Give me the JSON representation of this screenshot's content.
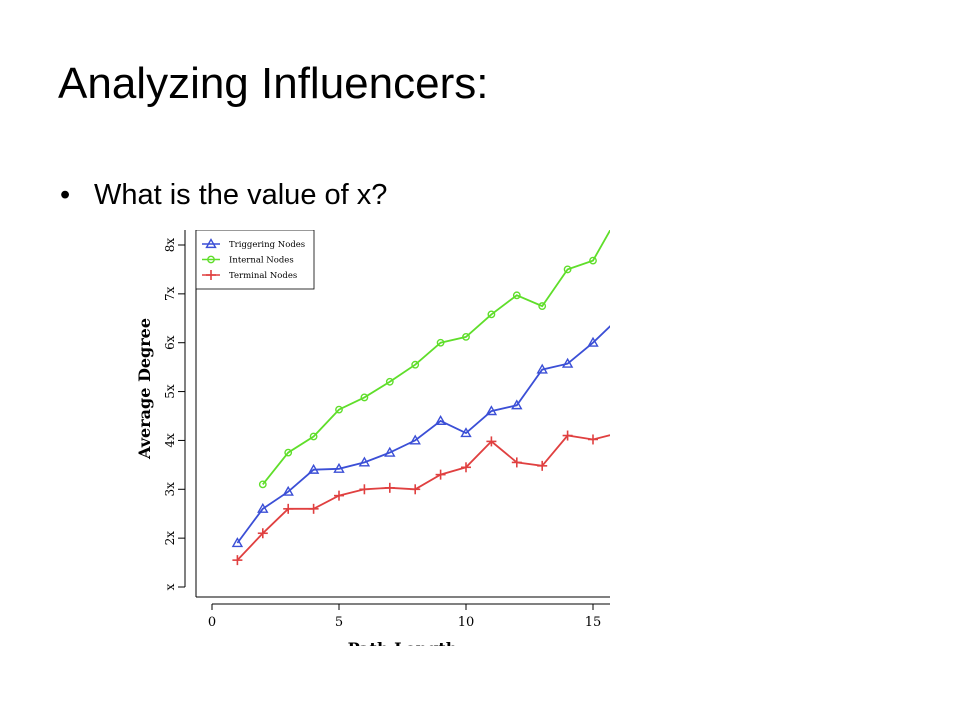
{
  "slide": {
    "title": "Analyzing Influencers:",
    "bullets": [
      {
        "marker": "•",
        "text": "What is the value of x?"
      }
    ]
  },
  "chart_data": {
    "type": "line",
    "xlabel": "Path Length",
    "ylabel": "Average Degree",
    "xlim": [
      0,
      15.6
    ],
    "ylim": [
      1,
      8.2
    ],
    "x_ticks": [
      0,
      5,
      10,
      15
    ],
    "y_ticks": [
      {
        "value": 1,
        "label": "x"
      },
      {
        "value": 2,
        "label": "2x"
      },
      {
        "value": 3,
        "label": "3x"
      },
      {
        "value": 4,
        "label": "4x"
      },
      {
        "value": 5,
        "label": "5x"
      },
      {
        "value": 6,
        "label": "6x"
      },
      {
        "value": 7,
        "label": "7x"
      },
      {
        "value": 8,
        "label": "8x"
      }
    ],
    "grid": false,
    "legend_position": "top-left",
    "series": [
      {
        "name": "Triggering Nodes",
        "color": "#3b4fd6",
        "marker": "triangle",
        "x": [
          1,
          2,
          3,
          4,
          5,
          6,
          7,
          8,
          9,
          10,
          11,
          12,
          13,
          14,
          15,
          16
        ],
        "values": [
          1.9,
          2.6,
          2.95,
          3.4,
          3.42,
          3.55,
          3.75,
          4.0,
          4.4,
          4.15,
          4.6,
          4.72,
          5.45,
          5.57,
          6.0,
          6.5
        ]
      },
      {
        "name": "Internal Nodes",
        "color": "#5fde2a",
        "marker": "circle",
        "x": [
          2,
          3,
          4,
          5,
          6,
          7,
          8,
          9,
          10,
          11,
          12,
          13,
          14,
          15,
          16
        ],
        "values": [
          3.1,
          3.75,
          4.08,
          4.63,
          4.88,
          5.2,
          5.55,
          6.0,
          6.12,
          6.58,
          6.97,
          6.75,
          7.5,
          7.68,
          8.6
        ]
      },
      {
        "name": "Terminal Nodes",
        "color": "#e04040",
        "marker": "plus",
        "x": [
          1,
          2,
          3,
          4,
          5,
          6,
          7,
          8,
          9,
          10,
          11,
          12,
          13,
          14,
          15,
          16
        ],
        "values": [
          1.55,
          2.1,
          2.6,
          2.6,
          2.87,
          3.0,
          3.03,
          3.0,
          3.3,
          3.45,
          3.98,
          3.55,
          3.48,
          4.1,
          4.02,
          4.15
        ]
      }
    ]
  }
}
